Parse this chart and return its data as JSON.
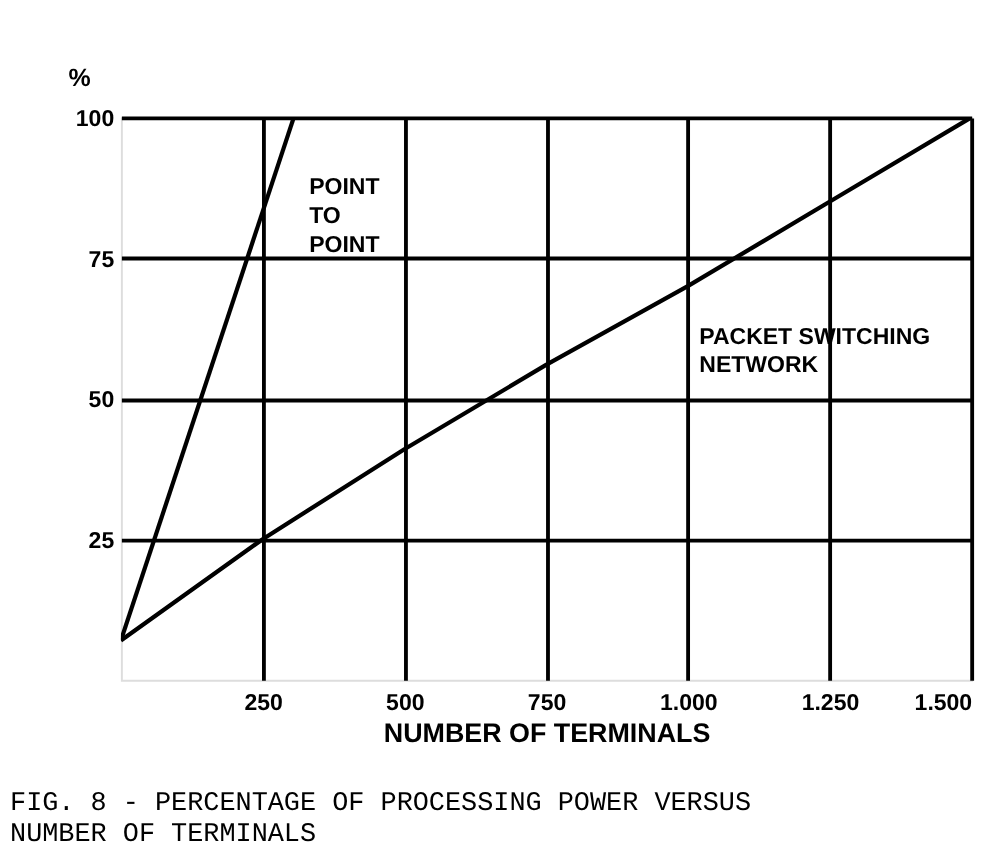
{
  "chart_data": {
    "type": "line",
    "title": "FIG. 8 - PERCENTAGE OF PROCESSING POWER VERSUS NUMBER OF TERMINALS",
    "xlabel": "NUMBER OF TERMINALS",
    "ylabel": "%",
    "series": [
      {
        "name": "POINT TO POINT",
        "color": "#000000",
        "x": [
          0,
          305
        ],
        "values": [
          7,
          100
        ]
      },
      {
        "name": "PACKET SWITCHING NETWORK",
        "color": "#000000",
        "x": [
          0,
          250,
          500,
          750,
          1000,
          1250,
          1500
        ],
        "values": [
          7,
          25,
          41,
          56,
          70,
          85,
          100
        ]
      }
    ],
    "xlim": [
      0,
      1500
    ],
    "xticks": [
      250,
      500,
      750,
      {
        "value": 1000,
        "label": "1.000"
      },
      {
        "value": 1250,
        "label": "1.250"
      },
      {
        "value": 1500,
        "label": "1.500"
      }
    ],
    "ylim": [
      0,
      100
    ],
    "yticks": [
      25,
      50,
      75,
      100
    ],
    "grid": true,
    "legend": false,
    "marker": "none",
    "line_style": "solid"
  }
}
